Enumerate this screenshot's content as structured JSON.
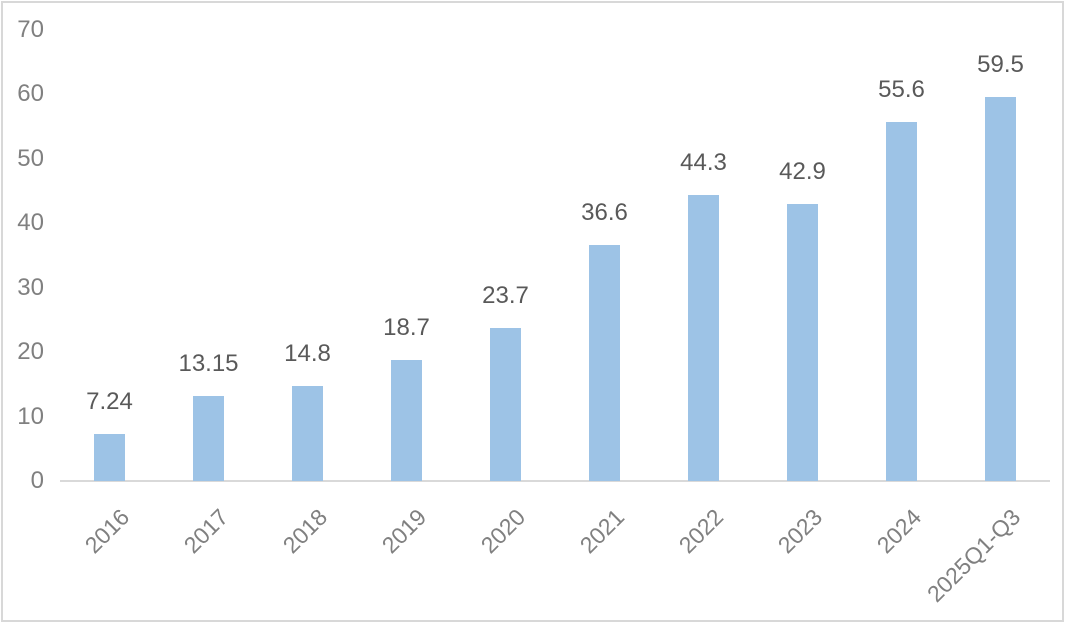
{
  "chart_data": {
    "type": "bar",
    "title": "",
    "xlabel": "",
    "ylabel": "",
    "categories": [
      "2016",
      "2017",
      "2018",
      "2019",
      "2020",
      "2021",
      "2022",
      "2023",
      "2024",
      "2025Q1-Q3"
    ],
    "values": [
      7.24,
      13.15,
      14.8,
      18.7,
      23.7,
      36.6,
      44.3,
      42.9,
      55.6,
      59.5
    ],
    "data_labels": [
      "7.24",
      "13.15",
      "14.8",
      "18.7",
      "23.7",
      "36.6",
      "44.3",
      "42.9",
      "55.6",
      "59.5"
    ],
    "yticks": [
      "0",
      "10",
      "20",
      "30",
      "40",
      "50",
      "60",
      "70"
    ],
    "ytick_values": [
      0,
      10,
      20,
      30,
      40,
      50,
      60,
      70
    ],
    "ylim": [
      0,
      70
    ],
    "grid": false,
    "legend": "none",
    "x_label_rotation_deg": -45,
    "colors": {
      "bar_fill": "#9DC3E6",
      "axis_line": "#D9D9D9",
      "tick_label": "#808080",
      "data_label": "#595959",
      "frame_border": "#D8D8D8",
      "background": "#FFFFFF"
    }
  }
}
